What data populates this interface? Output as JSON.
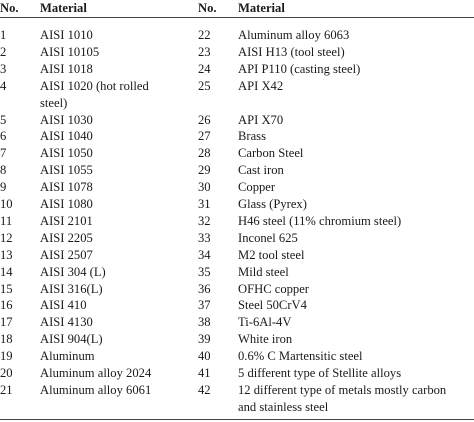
{
  "table": {
    "headers": {
      "no": "No.",
      "material": "Material"
    },
    "left_rows": [
      {
        "no": "1",
        "material": "AISI 1010"
      },
      {
        "no": "2",
        "material": "AISI 10105"
      },
      {
        "no": "3",
        "material": "AISI 1018"
      },
      {
        "no": "4",
        "material": "AISI 1020 (hot rolled",
        "material_cont": "steel)"
      },
      {
        "no": "5",
        "material": "AISI 1030"
      },
      {
        "no": "6",
        "material": "AISI 1040"
      },
      {
        "no": "7",
        "material": "AISI 1050"
      },
      {
        "no": "8",
        "material": "AISI 1055"
      },
      {
        "no": "9",
        "material": "AISI 1078"
      },
      {
        "no": "10",
        "material": "AISI 1080"
      },
      {
        "no": "11",
        "material": "AISI 2101"
      },
      {
        "no": "12",
        "material": "AISI 2205"
      },
      {
        "no": "13",
        "material": "AISI 2507"
      },
      {
        "no": "14",
        "material": "AISI 304 (L)"
      },
      {
        "no": "15",
        "material": "AISI 316(L)"
      },
      {
        "no": "16",
        "material": "AISI 410"
      },
      {
        "no": "17",
        "material": "AISI 4130"
      },
      {
        "no": "18",
        "material": "AISI 904(L)"
      },
      {
        "no": "19",
        "material": "Aluminum"
      },
      {
        "no": "20",
        "material": "Aluminum alloy 2024"
      },
      {
        "no": "21",
        "material": "Aluminum alloy 6061"
      }
    ],
    "right_rows": [
      {
        "no": "22",
        "material": "Aluminum alloy 6063"
      },
      {
        "no": "23",
        "material": "AISI H13 (tool steel)"
      },
      {
        "no": "24",
        "material": "API P110 (casting steel)"
      },
      {
        "no": "25",
        "material": "API X42"
      },
      {
        "no": "26",
        "material": "API X70"
      },
      {
        "no": "27",
        "material": "Brass"
      },
      {
        "no": "28",
        "material": "Carbon Steel"
      },
      {
        "no": "29",
        "material": "Cast iron"
      },
      {
        "no": "30",
        "material": "Copper"
      },
      {
        "no": "31",
        "material": "Glass (Pyrex)"
      },
      {
        "no": "32",
        "material": "H46 steel (11% chromium steel)"
      },
      {
        "no": "33",
        "material": "Inconel 625"
      },
      {
        "no": "34",
        "material": "M2 tool steel"
      },
      {
        "no": "35",
        "material": "Mild steel"
      },
      {
        "no": "36",
        "material": "OFHC copper"
      },
      {
        "no": "37",
        "material": "Steel 50CrV4"
      },
      {
        "no": "38",
        "material": "Ti-6Al-4V"
      },
      {
        "no": "39",
        "material": "White iron"
      },
      {
        "no": "40",
        "material": "0.6% C Martensitic steel"
      },
      {
        "no": "41",
        "material": "5 different type of Stellite alloys"
      },
      {
        "no": "42",
        "material": "12 different type of metals mostly carbon",
        "material_cont": "and stainless steel"
      }
    ]
  }
}
